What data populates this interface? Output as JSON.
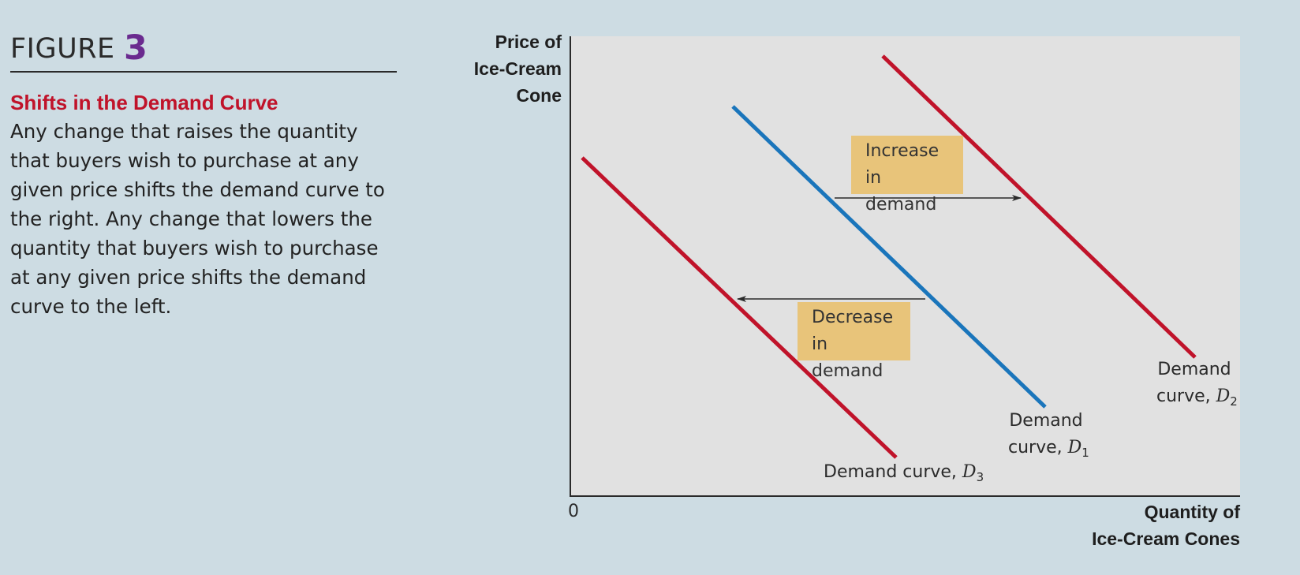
{
  "figure": {
    "word": "FIGURE",
    "number": "3",
    "title": "Shifts in the Demand Curve",
    "body_lines": [
      "Any change that raises the quantity",
      "that buyers wish to purchase at any",
      "given price shifts the demand curve to",
      "the right. Any change that lowers the",
      "quantity that buyers wish to purchase",
      "at any given price shifts the demand",
      "curve to the left."
    ]
  },
  "graph": {
    "y_axis_label_lines": [
      "Price of",
      "Ice-Cream",
      "Cone"
    ],
    "x_axis_label_lines": [
      "Quantity of",
      "Ice-Cream Cones"
    ],
    "origin_label": "0",
    "increase_label_lines": [
      "Increase",
      "in demand"
    ],
    "decrease_label_lines": [
      "Decrease",
      "in demand"
    ],
    "curves": [
      {
        "id": "d1",
        "label_prefix": "Demand",
        "label_line2": "curve, ",
        "symbol": "D",
        "subscript": "1",
        "color": "#1a75bb"
      },
      {
        "id": "d2",
        "label_prefix": "Demand",
        "label_line2": "curve, ",
        "symbol": "D",
        "subscript": "2",
        "color": "#c0132a"
      },
      {
        "id": "d3",
        "label_line": "Demand curve, ",
        "symbol": "D",
        "subscript": "3",
        "color": "#c0132a"
      }
    ],
    "colors": {
      "plot_background": "#e1e1e1",
      "page_background": "#cddce3",
      "label_box": "#e8c47a",
      "figure_number": "#6a2a8f",
      "title_red": "#c0132a"
    }
  }
}
